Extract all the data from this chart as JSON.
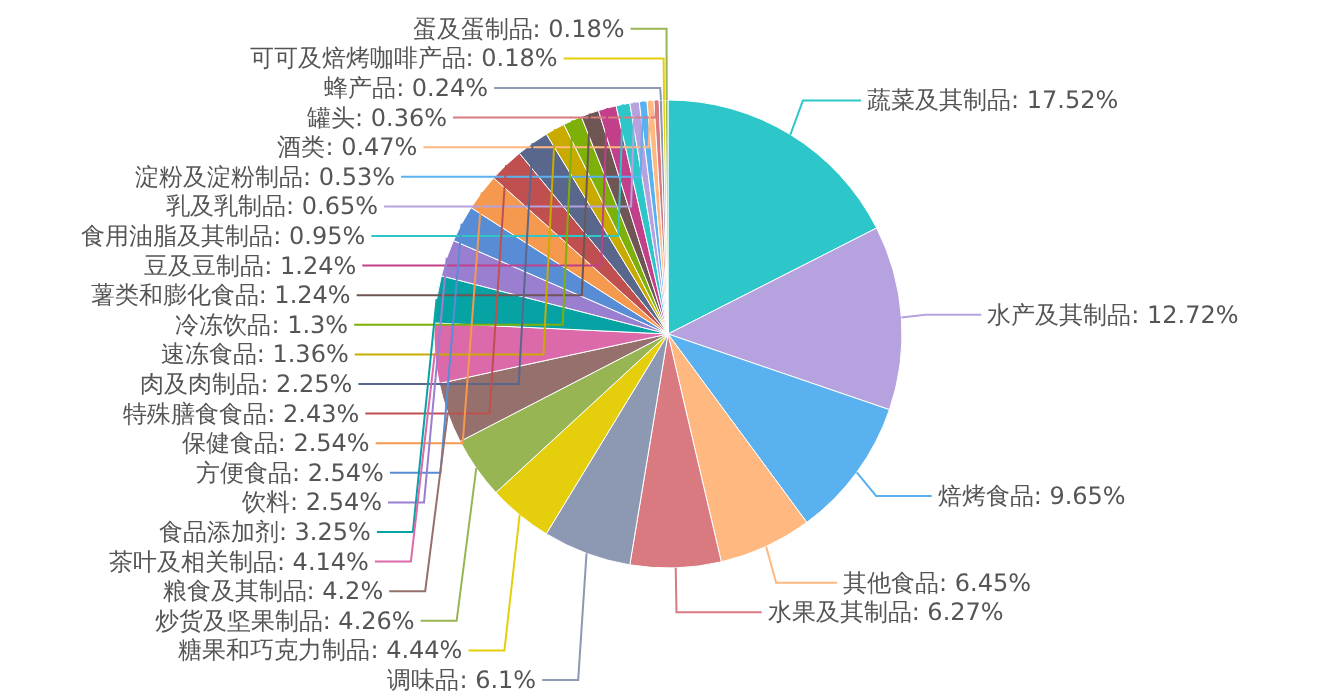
{
  "chart_data": {
    "type": "pie",
    "categories": [
      "蔬菜及其制品",
      "水产及其制品",
      "焙烤食品",
      "其他食品",
      "水果及其制品",
      "调味品",
      "糖果和巧克力制品",
      "炒货及坚果制品",
      "粮食及其制品",
      "茶叶及相关制品",
      "食品添加剂",
      "饮料",
      "方便食品",
      "保健食品",
      "特殊膳食食品",
      "肉及肉制品",
      "速冻食品",
      "冷冻饮品",
      "薯类和膨化食品",
      "豆及豆制品",
      "食用油脂及其制品",
      "乳及乳制品",
      "淀粉及淀粉制品",
      "酒类",
      "罐头",
      "蜂产品",
      "可可及焙烤咖啡产品",
      "蛋及蛋制品"
    ],
    "values": [
      17.52,
      12.72,
      9.65,
      6.45,
      6.27,
      6.1,
      4.44,
      4.26,
      4.2,
      4.14,
      3.25,
      2.54,
      2.54,
      2.54,
      2.43,
      2.25,
      1.36,
      1.3,
      1.24,
      1.24,
      0.95,
      0.65,
      0.53,
      0.47,
      0.36,
      0.24,
      0.18,
      0.18
    ],
    "value_labels": [
      ": 17.52%",
      ": 12.72%",
      ": 9.65%",
      ": 6.45%",
      ": 6.27%",
      ": 6.1%",
      ": 4.44%",
      ": 4.26%",
      ": 4.2%",
      ": 4.14%",
      ": 3.25%",
      ": 2.54%",
      ": 2.54%",
      ": 2.54%",
      ": 2.43%",
      ": 2.25%",
      ": 1.36%",
      ": 1.3%",
      ": 1.24%",
      ": 1.24%",
      ": 0.95%",
      ": 0.65%",
      ": 0.53%",
      ": 0.47%",
      ": 0.36%",
      ": 0.24%",
      ": 0.18%",
      ": 0.18%"
    ],
    "colors": [
      "#2ec7c9",
      "#b6a2de",
      "#5ab1ef",
      "#ffb980",
      "#d87a80",
      "#8d98b3",
      "#e5cf0d",
      "#97b552",
      "#95706d",
      "#dc69aa",
      "#07a2a4",
      "#9a7fd1",
      "#588dd5",
      "#f5994e",
      "#c05050",
      "#59678c",
      "#c9ab00",
      "#7eb00a",
      "#6f5553",
      "#c14089",
      "#2ec7c9",
      "#b6a2de",
      "#5ab1ef",
      "#ffb980",
      "#d87a80",
      "#8d98b3",
      "#e5cf0d",
      "#97b552"
    ]
  }
}
